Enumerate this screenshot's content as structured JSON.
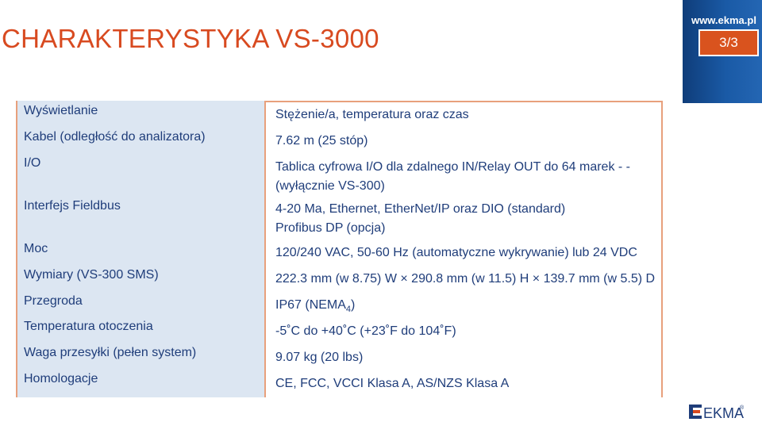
{
  "header": {
    "title": "CHARAKTERYSTYKA VS-3000",
    "site_url": "www.ekma.pl",
    "page": "3/3"
  },
  "spec_rows": [
    {
      "label": "Wyświetlanie",
      "value_lines": [
        "Stężenie/a, temperatura oraz czas"
      ]
    },
    {
      "label": "Kabel (odległość do analizatora)",
      "value_lines": [
        "7.62 m (25 stóp)"
      ]
    },
    {
      "label": "I/O",
      "value_lines": [
        "Tablica cyfrowa I/O dla zdalnego IN/Relay OUT do 64 marek - -",
        "(wyłącznie VS-300)"
      ]
    },
    {
      "label": "Interfejs Fieldbus",
      "value_lines": [
        "4-20 Ma, Ethernet, EtherNet/IP oraz DIO (standard)",
        "Profibus DP (opcja)"
      ]
    },
    {
      "label": "Moc",
      "value_lines": [
        "120/240 VAC, 50-60 Hz (automatyczne wykrywanie) lub 24 VDC"
      ]
    },
    {
      "label": "Wymiary (VS-300 SMS)",
      "value_lines": [
        "222.3 mm (w 8.75) W × 290.8 mm (w 11.5) H × 139.7 mm (w 5.5) D"
      ]
    },
    {
      "label": "Przegroda",
      "value_prefix": "IP67 (NEMA",
      "value_sub": "4",
      "value_suffix": ")"
    },
    {
      "label": "Temperatura otoczenia",
      "value_lines": [
        "-5˚C do +40˚C (+23˚F do 104˚F)"
      ]
    },
    {
      "label": "Waga przesyłki (pełen system)",
      "value_lines": [
        "9.07 kg (20 lbs)"
      ]
    },
    {
      "label": "Homologacje",
      "value_lines": [
        "CE, FCC, VCCI Klasa A, AS/NZS Klasa A"
      ]
    }
  ],
  "logo": {
    "text": "EKMA",
    "mark": "®"
  },
  "colors": {
    "accent": "#d84a20",
    "band": "#1a5aa6",
    "label_bg": "#dce6f2",
    "text": "#1f3d7a"
  }
}
